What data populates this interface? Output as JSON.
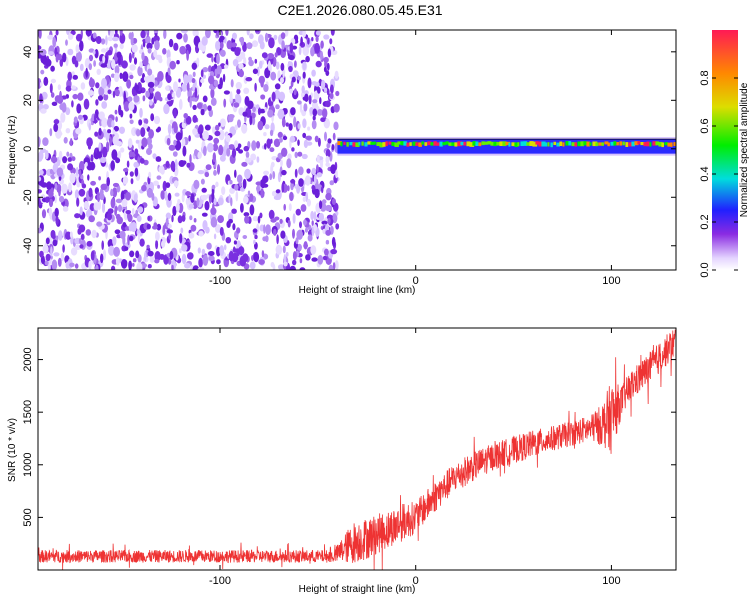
{
  "title": "C2E1.2026.080.05.45.E31",
  "chart_data": [
    {
      "type": "heatmap",
      "xlabel": "Height of straight line (km)",
      "ylabel": "Frequency (Hz)",
      "xlim": [
        -193,
        133
      ],
      "ylim": [
        -50,
        49
      ],
      "x_ticks": [
        -100,
        0,
        100
      ],
      "y_ticks": [
        -40,
        -20,
        0,
        20,
        40
      ],
      "noise_region_x": [
        -193,
        -40
      ],
      "signal_band": {
        "x_range": [
          -40,
          133
        ],
        "freq_center": 1,
        "freq_halfwidth": 3
      },
      "colorbar": {
        "label": "Normalized spectral amplitude",
        "range": [
          0,
          1
        ],
        "ticks": [
          0.0,
          0.2,
          0.4,
          0.6,
          0.8
        ]
      },
      "grid": false
    },
    {
      "type": "line",
      "xlabel": "Height of straight line (km)",
      "ylabel": "SNR (10 * v/v)",
      "xlim": [
        -193,
        133
      ],
      "ylim": [
        0,
        2300
      ],
      "x_ticks": [
        -100,
        0,
        100
      ],
      "y_ticks": [
        500,
        1000,
        1500,
        2000
      ],
      "color": "#ee3333",
      "x": [
        -193,
        -160,
        -120,
        -80,
        -42,
        -32,
        -25,
        -15,
        -5,
        0,
        10,
        20,
        30,
        40,
        50,
        60,
        70,
        80,
        90,
        95,
        100,
        105,
        110,
        120,
        133
      ],
      "y": [
        130,
        130,
        130,
        130,
        130,
        260,
        300,
        380,
        470,
        500,
        700,
        880,
        990,
        1080,
        1140,
        1200,
        1250,
        1300,
        1350,
        1380,
        1450,
        1600,
        1750,
        1930,
        2180
      ],
      "noise_amplitude": [
        60,
        60,
        60,
        60,
        60,
        200,
        200,
        180,
        180,
        150,
        150,
        140,
        140,
        130,
        130,
        130,
        120,
        120,
        130,
        200,
        350,
        150,
        150,
        150,
        150
      ],
      "grid": false
    }
  ]
}
